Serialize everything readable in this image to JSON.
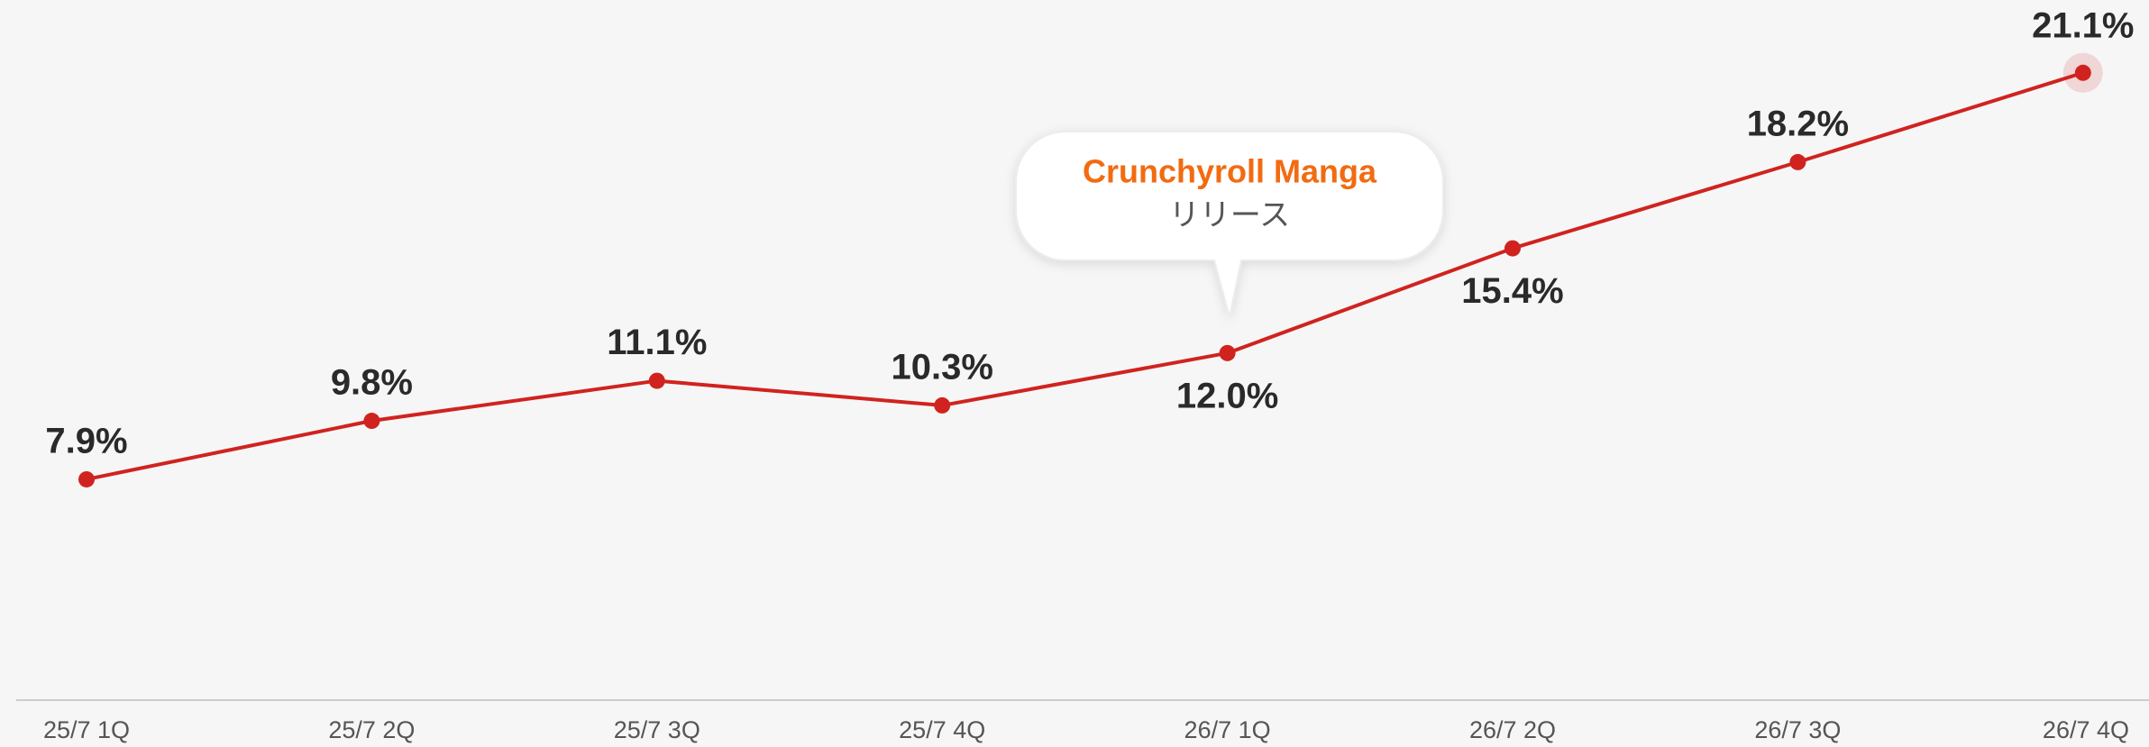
{
  "chart_data": {
    "type": "line",
    "categories": [
      "25/7 1Q",
      "25/7 2Q",
      "25/7 3Q",
      "25/7 4Q",
      "26/7 1Q",
      "26/7 2Q",
      "26/7 3Q",
      "26/7 4Q"
    ],
    "values": [
      7.9,
      9.8,
      11.1,
      10.3,
      12.0,
      15.4,
      18.2,
      21.1
    ],
    "value_labels": [
      "7.9%",
      "9.8%",
      "11.1%",
      "10.3%",
      "12.0%",
      "15.4%",
      "18.2%",
      "21.1%"
    ],
    "color": "#d0231f",
    "ylim": [
      0,
      22
    ],
    "annotation": {
      "title": "Crunchyroll Manga",
      "text": "リリース"
    }
  }
}
